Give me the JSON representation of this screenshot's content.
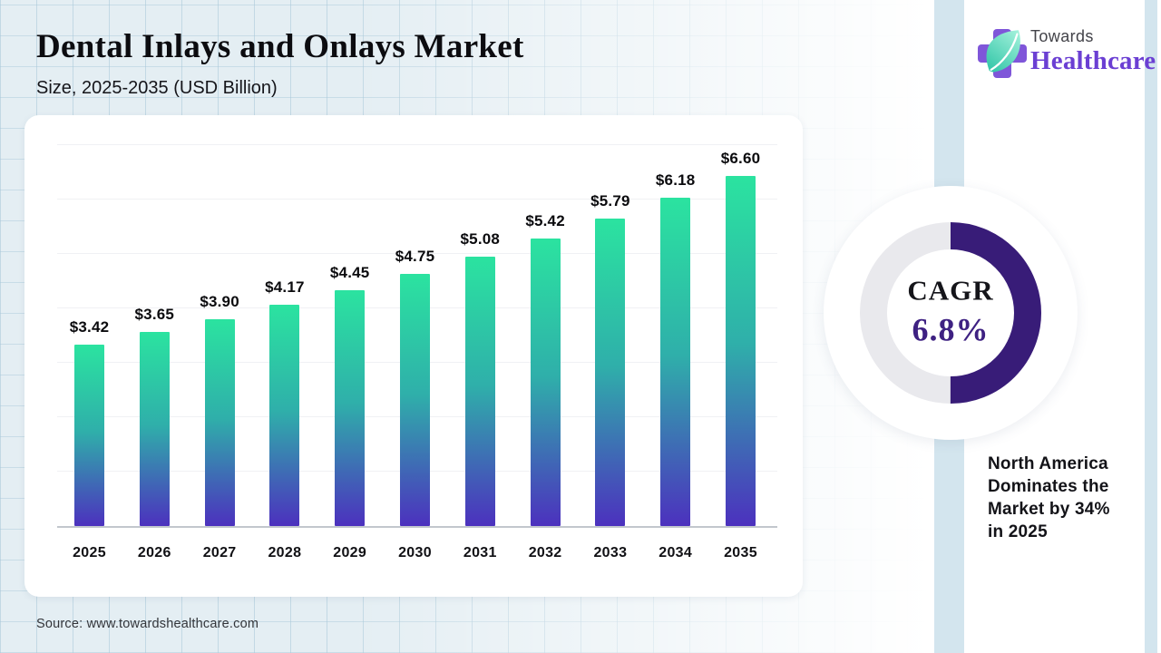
{
  "header": {
    "title": "Dental Inlays and Onlays Market",
    "subtitle": "Size, 2025-2035 (USD Billion)"
  },
  "logo": {
    "line1": "Towards",
    "line2": "Healthcare",
    "cross_color": "#7f56d9",
    "leaf_color": "#35cdb0",
    "text_color": "#6b3fd3"
  },
  "chart_data": {
    "type": "bar",
    "title": "Dental Inlays and Onlays Market Size, 2025-2035 (USD Billion)",
    "categories": [
      "2025",
      "2026",
      "2027",
      "2028",
      "2029",
      "2030",
      "2031",
      "2032",
      "2033",
      "2034",
      "2035"
    ],
    "values": [
      3.42,
      3.65,
      3.9,
      4.17,
      4.45,
      4.75,
      5.08,
      5.42,
      5.79,
      6.18,
      6.6
    ],
    "value_labels": [
      "$3.42",
      "$3.65",
      "$3.90",
      "$4.17",
      "$4.45",
      "$4.75",
      "$5.08",
      "$5.42",
      "$5.79",
      "$6.18",
      "$6.60"
    ],
    "xlabel": "",
    "ylabel": "",
    "ylim": [
      0,
      7
    ],
    "grid": "horizontal gridlines every 1.0, no y-axis tick labels",
    "legend": "none",
    "bar_gradient": [
      "#2be3a0",
      "#2fafaa",
      "#4c31be"
    ]
  },
  "donut": {
    "label": "CAGR",
    "value": "6.8%",
    "percent_filled": 50,
    "arc_color": "#381c78",
    "track_color": "#e9e9ed"
  },
  "callout": {
    "lines": [
      "North America",
      "Dominates the",
      "Market by 34%",
      "in 2025"
    ]
  },
  "source": {
    "text": "Source: www.towardshealthcare.com"
  }
}
